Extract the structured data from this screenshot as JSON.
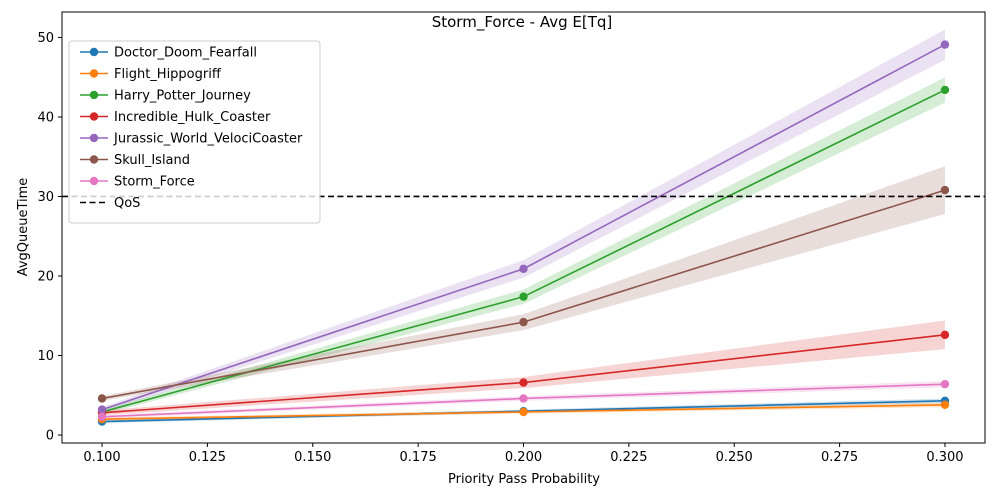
{
  "chart_data": {
    "type": "line",
    "title": "Storm_Force - Avg E[Tq]",
    "xlabel": "Priority Pass Probability",
    "ylabel": "AvgQueueTime",
    "xlim": [
      0.0905,
      0.3095
    ],
    "ylim": [
      -1.0,
      53.2
    ],
    "x_ticks": [
      0.1,
      0.125,
      0.15,
      0.175,
      0.2,
      0.225,
      0.25,
      0.275,
      0.3
    ],
    "x_tick_labels": [
      "0.100",
      "0.125",
      "0.150",
      "0.175",
      "0.200",
      "0.225",
      "0.250",
      "0.275",
      "0.300"
    ],
    "y_ticks": [
      0,
      10,
      20,
      30,
      40,
      50
    ],
    "y_tick_labels": [
      "0",
      "10",
      "20",
      "30",
      "40",
      "50"
    ],
    "grid": false,
    "legend_position": "top-left",
    "x": [
      0.1,
      0.2,
      0.3
    ],
    "series": [
      {
        "name": "Doctor_Doom_Fearfall",
        "color": "#1f77b4",
        "values": [
          1.7,
          3.0,
          4.3
        ],
        "lower": [
          1.5,
          2.8,
          4.0
        ],
        "upper": [
          1.9,
          3.2,
          4.6
        ]
      },
      {
        "name": "Flight_Hippogriff",
        "color": "#ff7f0e",
        "values": [
          2.0,
          2.9,
          3.8
        ],
        "lower": [
          1.8,
          2.7,
          3.5
        ],
        "upper": [
          2.2,
          3.1,
          4.1
        ]
      },
      {
        "name": "Harry_Potter_Journey",
        "color": "#2ca02c",
        "values": [
          2.9,
          17.4,
          43.4
        ],
        "lower": [
          2.6,
          16.5,
          41.8
        ],
        "upper": [
          3.2,
          18.3,
          45.0
        ]
      },
      {
        "name": "Incredible_Hulk_Coaster",
        "color": "#d62728",
        "values": [
          2.8,
          6.6,
          12.6
        ],
        "lower": [
          2.5,
          5.9,
          10.8
        ],
        "upper": [
          3.1,
          7.3,
          14.4
        ]
      },
      {
        "name": "Jurassic_World_VelociCoaster",
        "color": "#9467bd",
        "values": [
          3.2,
          20.9,
          49.1
        ],
        "lower": [
          2.9,
          19.8,
          47.2
        ],
        "upper": [
          3.5,
          22.0,
          51.0
        ]
      },
      {
        "name": "Skull_Island",
        "color": "#8c564b",
        "values": [
          4.6,
          14.2,
          30.8
        ],
        "lower": [
          4.3,
          13.2,
          27.8
        ],
        "upper": [
          4.9,
          15.2,
          33.8
        ]
      },
      {
        "name": "Storm_Force",
        "color": "#e377c2",
        "values": [
          2.3,
          4.6,
          6.4
        ],
        "lower": [
          2.1,
          4.3,
          6.0
        ],
        "upper": [
          2.5,
          4.9,
          6.8
        ]
      }
    ],
    "hline": {
      "name": "QoS",
      "value": 30,
      "color": "#000000",
      "style": "dashed"
    }
  }
}
